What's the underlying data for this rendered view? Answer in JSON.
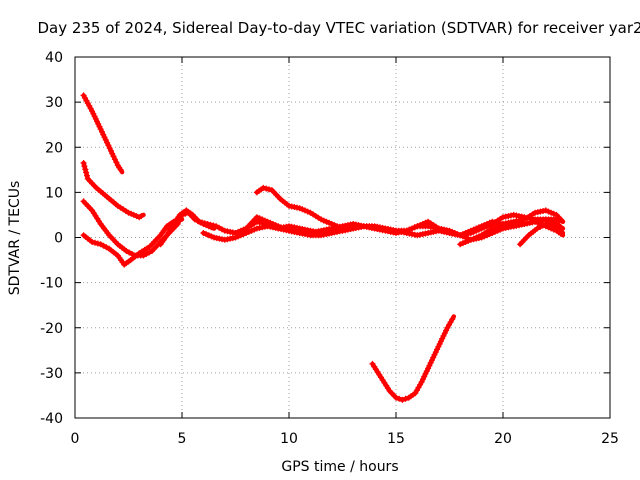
{
  "chart_data": {
    "type": "scatter",
    "title": "Day 235 of 2024, Sidereal Day-to-day VTEC variation (SDTVAR) for receiver yar2",
    "xlabel": "GPS time / hours",
    "ylabel": "SDTVAR / TECUs",
    "xlim": [
      0,
      25
    ],
    "ylim": [
      -40,
      40
    ],
    "xticks": [
      0,
      5,
      10,
      15,
      20,
      25
    ],
    "yticks": [
      -40,
      -30,
      -20,
      -10,
      0,
      10,
      20,
      30,
      40
    ],
    "grid": true,
    "marker_color": "#ff0000",
    "series": [
      {
        "name": "trace-1",
        "x": [
          0.4,
          0.8,
          1.2,
          1.5,
          1.8,
          2.0,
          2.2
        ],
        "y": [
          31.5,
          28,
          24,
          21,
          18,
          16,
          14.5
        ]
      },
      {
        "name": "trace-2",
        "x": [
          0.4,
          0.6,
          1.0,
          1.5,
          2.0,
          2.5,
          3.0,
          3.2
        ],
        "y": [
          16.5,
          13,
          11,
          9,
          7,
          5.5,
          4.5,
          5
        ]
      },
      {
        "name": "trace-3",
        "x": [
          0.4,
          0.8,
          1.2,
          1.6,
          2.0,
          2.4,
          2.8,
          3.2,
          3.6,
          4.0,
          4.4,
          4.8,
          5.0,
          5.3,
          5.6,
          6.0,
          6.5
        ],
        "y": [
          8,
          6,
          3,
          0.5,
          -1.5,
          -3,
          -4,
          -4,
          -3,
          -1,
          1,
          3,
          5,
          5.5,
          4,
          3,
          2
        ]
      },
      {
        "name": "trace-4",
        "x": [
          0.4,
          0.8,
          1.2,
          1.6,
          2.0,
          2.3,
          2.6,
          3.0,
          3.5,
          4.0,
          4.3,
          4.6,
          5.0
        ],
        "y": [
          0.5,
          -1,
          -1.5,
          -2.5,
          -4,
          -6,
          -5,
          -3.5,
          -2,
          0.5,
          2.5,
          3.5,
          4
        ]
      },
      {
        "name": "trace-5",
        "x": [
          4.0,
          4.3,
          4.6,
          4.9,
          5.2,
          5.5,
          5.8,
          6.2,
          6.6,
          7.0,
          7.5,
          8.0,
          8.5,
          9.0,
          9.5,
          10.0,
          10.5,
          11.0,
          11.5,
          12.0,
          12.5,
          13.0,
          13.5,
          14.0,
          14.5,
          15.0,
          15.5,
          16.0,
          16.5,
          17.0,
          17.5,
          18.0,
          18.5,
          19.0,
          19.5,
          20.0,
          20.5,
          21.0,
          21.5,
          22.0,
          22.5,
          22.8
        ],
        "y": [
          -1.5,
          0.5,
          3,
          5,
          6,
          5,
          3.5,
          3,
          2.5,
          1.5,
          1,
          2,
          3.5,
          3,
          2,
          2.5,
          2,
          1.5,
          1,
          1.5,
          1.5,
          2,
          2.5,
          2.5,
          2,
          1.5,
          1,
          0.5,
          1,
          1.5,
          1,
          0.5,
          1.5,
          2.5,
          3.5,
          3,
          2.5,
          3,
          3.5,
          4,
          3,
          2
        ]
      },
      {
        "name": "trace-6",
        "x": [
          6.0,
          6.5,
          7.0,
          7.5,
          8.0,
          8.5,
          9.0,
          9.5,
          10.0,
          10.5,
          11.0,
          11.5,
          12.0,
          12.5,
          13.0,
          13.5,
          14.0,
          14.5,
          15.0,
          15.5,
          16.0,
          16.5,
          17.0,
          17.5,
          18.0,
          18.5,
          19.0,
          19.5,
          20.0,
          20.5,
          21.0,
          21.5,
          22.0,
          22.5,
          22.8
        ],
        "y": [
          1,
          0,
          -0.5,
          0,
          1,
          2,
          2.5,
          2,
          1.5,
          1,
          0.5,
          0.5,
          1,
          1.5,
          2,
          2.5,
          2,
          1.5,
          1,
          1.5,
          2.5,
          2.5,
          2,
          1.5,
          0.5,
          -0.5,
          0,
          1,
          2,
          2.5,
          3,
          3.5,
          2.5,
          1.5,
          0.5
        ]
      },
      {
        "name": "trace-7",
        "x": [
          8.5,
          8.8,
          9.2,
          9.6,
          10.0,
          10.5,
          11.0,
          11.5,
          12.0,
          12.5,
          13.0,
          13.5,
          14.0
        ],
        "y": [
          10,
          11,
          10.5,
          8.5,
          7,
          6.5,
          5.5,
          4,
          3,
          2,
          2,
          2.5,
          2.5
        ]
      },
      {
        "name": "trace-8",
        "x": [
          8.0,
          8.5,
          9.0,
          9.5,
          10.0,
          10.5,
          11.0,
          11.5,
          12.0,
          12.5,
          13.0,
          13.5,
          14.0,
          14.5,
          15.0,
          15.5,
          16.0,
          16.5,
          17.0,
          17.5,
          18.0,
          18.5,
          19.0,
          19.5,
          20.0,
          20.5,
          21.0,
          21.5,
          22.0,
          22.5,
          22.8
        ],
        "y": [
          2,
          4.5,
          3.5,
          2.5,
          1.5,
          1,
          1,
          1.5,
          2,
          2.5,
          3,
          2.5,
          2,
          2,
          1.5,
          1.5,
          2.5,
          3.5,
          2,
          1,
          0.5,
          1,
          2,
          3,
          4.5,
          5,
          4.5,
          4,
          4,
          4,
          3.5
        ]
      },
      {
        "name": "trace-9",
        "x": [
          18.0,
          18.5,
          19.0,
          19.5,
          20.0,
          20.5,
          21.0,
          21.5,
          22.0,
          22.5,
          22.8
        ],
        "y": [
          -1.5,
          -0.5,
          0.5,
          2,
          3,
          3.5,
          4,
          5.5,
          6,
          5,
          3.5
        ]
      },
      {
        "name": "trace-10",
        "x": [
          20.8,
          21.2,
          21.6,
          22.0,
          22.4,
          22.8
        ],
        "y": [
          -1.5,
          0.5,
          2,
          3,
          2.5,
          1
        ]
      },
      {
        "name": "trace-11",
        "x": [
          13.9,
          14.3,
          14.7,
          15.0,
          15.3,
          15.6,
          15.9,
          16.2,
          16.5,
          16.8,
          17.1,
          17.4,
          17.7
        ],
        "y": [
          -28,
          -31,
          -34,
          -35.5,
          -36,
          -35.5,
          -34.5,
          -32,
          -29,
          -26,
          -23,
          -20,
          -17.5
        ]
      }
    ]
  }
}
